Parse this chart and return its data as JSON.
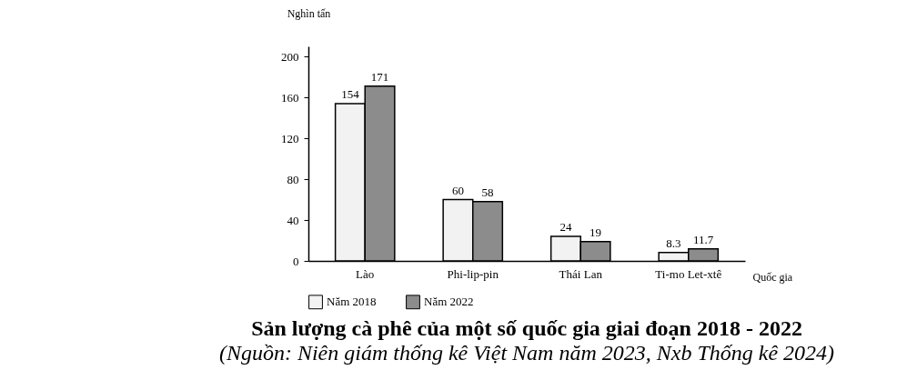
{
  "chart_data": {
    "type": "bar",
    "title": "Sản lượng cà phê của một số quốc gia giai đoạn 2018 - 2022",
    "annotations": [
      "(Nguồn: Niên giám thống kê Việt Nam năm 2023, Nxb Thống kê 2024)"
    ],
    "xlabel": "Quốc gia",
    "ylabel": "Nghìn tấn",
    "categories": [
      "Lào",
      "Phi-lip-pin",
      "Thái Lan",
      "Ti-mo Let-xtê"
    ],
    "series": [
      {
        "name": "Năm 2018",
        "color": "#f2f2f2",
        "values": [
          154,
          60,
          24,
          8.3
        ]
      },
      {
        "name": "Năm 2022",
        "color": "#8c8c8c",
        "values": [
          171,
          58,
          19,
          11.7
        ]
      }
    ],
    "ylim": [
      0,
      210
    ],
    "yticks": [
      0,
      40,
      80,
      120,
      160,
      200
    ],
    "grid": false,
    "legend": "bottom",
    "data_labels": true
  }
}
